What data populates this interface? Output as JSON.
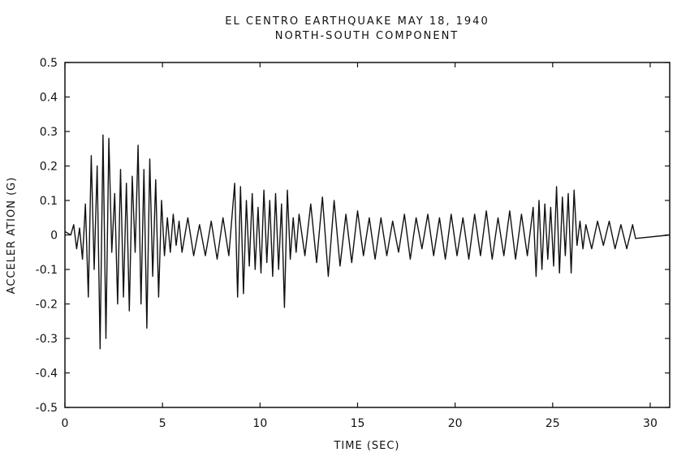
{
  "chart_data": {
    "type": "line",
    "title": "EL CENTRO EARTHQUAKE  MAY 18, 1940",
    "subtitle": "NORTH-SOUTH COMPONENT",
    "xlabel": "TIME (SEC)",
    "ylabel": "ACCELER ATION (G)",
    "xlim": [
      0,
      31
    ],
    "ylim": [
      -0.5,
      0.5
    ],
    "x_ticks": [
      0,
      5,
      10,
      15,
      20,
      25,
      30
    ],
    "x_tick_labels": [
      "0",
      "5",
      "10",
      "15",
      "20",
      "25",
      "30"
    ],
    "y_ticks": [
      0.5,
      0.4,
      0.3,
      0.2,
      0.1,
      0,
      -0.1,
      -0.2,
      -0.3,
      -0.4,
      -0.5
    ],
    "y_tick_labels": [
      "0.5",
      "0.4",
      "0.3",
      "0.2",
      "0.1",
      "0",
      "-0.1",
      "-0.2",
      "-0.3",
      "-0.4",
      "-0.5"
    ],
    "grid": false,
    "series": [
      {
        "x": [
          0,
          0.3,
          0.45,
          0.6,
          0.75,
          0.9,
          1.05,
          1.2,
          1.35,
          1.5,
          1.65,
          1.8,
          1.95,
          2.1,
          2.25,
          2.4,
          2.55,
          2.7,
          2.85,
          3.0,
          3.15,
          3.3,
          3.45,
          3.6,
          3.75,
          3.9,
          4.05,
          4.2,
          4.35,
          4.5,
          4.65,
          4.8,
          4.95,
          5.1,
          5.25,
          5.4,
          5.55,
          5.7,
          5.85,
          6.0,
          6.3,
          6.6,
          6.9,
          7.2,
          7.5,
          7.8,
          8.1,
          8.4,
          8.7,
          8.85,
          9.0,
          9.15,
          9.3,
          9.45,
          9.6,
          9.75,
          9.9,
          10.05,
          10.2,
          10.35,
          10.5,
          10.65,
          10.8,
          10.95,
          11.1,
          11.25,
          11.4,
          11.55,
          11.7,
          11.85,
          12.0,
          12.3,
          12.6,
          12.9,
          13.2,
          13.5,
          13.8,
          14.1,
          14.4,
          14.7,
          15.0,
          15.3,
          15.6,
          15.9,
          16.2,
          16.5,
          16.8,
          17.1,
          17.4,
          17.7,
          18.0,
          18.3,
          18.6,
          18.9,
          19.2,
          19.5,
          19.8,
          20.1,
          20.4,
          20.7,
          21.0,
          21.3,
          21.6,
          21.9,
          22.2,
          22.5,
          22.8,
          23.1,
          23.4,
          23.7,
          24.0,
          24.15,
          24.3,
          24.45,
          24.6,
          24.75,
          24.9,
          25.05,
          25.2,
          25.35,
          25.5,
          25.65,
          25.8,
          25.95,
          26.1,
          26.25,
          26.4,
          26.55,
          26.7,
          27.0,
          27.3,
          27.6,
          27.9,
          28.2,
          28.5,
          28.8,
          29.1,
          29.25,
          31.0
        ],
        "values": [
          0.01,
          0.0,
          0.03,
          -0.04,
          0.02,
          -0.07,
          0.09,
          -0.18,
          0.23,
          -0.1,
          0.2,
          -0.33,
          0.29,
          -0.3,
          0.28,
          -0.05,
          0.12,
          -0.2,
          0.19,
          -0.18,
          0.15,
          -0.22,
          0.17,
          -0.05,
          0.26,
          -0.2,
          0.19,
          -0.27,
          0.22,
          -0.12,
          0.16,
          -0.18,
          0.1,
          -0.06,
          0.05,
          -0.05,
          0.06,
          -0.03,
          0.04,
          -0.05,
          0.05,
          -0.06,
          0.03,
          -0.06,
          0.04,
          -0.07,
          0.05,
          -0.06,
          0.15,
          -0.18,
          0.14,
          -0.17,
          0.1,
          -0.09,
          0.12,
          -0.1,
          0.08,
          -0.11,
          0.13,
          -0.08,
          0.1,
          -0.12,
          0.12,
          -0.1,
          0.09,
          -0.21,
          0.13,
          -0.07,
          0.05,
          -0.05,
          0.06,
          -0.06,
          0.09,
          -0.08,
          0.11,
          -0.12,
          0.1,
          -0.09,
          0.06,
          -0.08,
          0.07,
          -0.06,
          0.05,
          -0.07,
          0.05,
          -0.06,
          0.04,
          -0.05,
          0.06,
          -0.07,
          0.05,
          -0.04,
          0.06,
          -0.06,
          0.05,
          -0.07,
          0.06,
          -0.06,
          0.05,
          -0.07,
          0.06,
          -0.06,
          0.07,
          -0.07,
          0.05,
          -0.06,
          0.07,
          -0.07,
          0.06,
          -0.06,
          0.08,
          -0.12,
          0.1,
          -0.1,
          0.09,
          -0.07,
          0.08,
          -0.09,
          0.14,
          -0.11,
          0.11,
          -0.06,
          0.12,
          -0.11,
          0.13,
          -0.03,
          0.04,
          -0.04,
          0.03,
          -0.04,
          0.04,
          -0.03,
          0.04,
          -0.04,
          0.03,
          -0.04,
          0.03,
          -0.01,
          0.0
        ]
      }
    ]
  }
}
